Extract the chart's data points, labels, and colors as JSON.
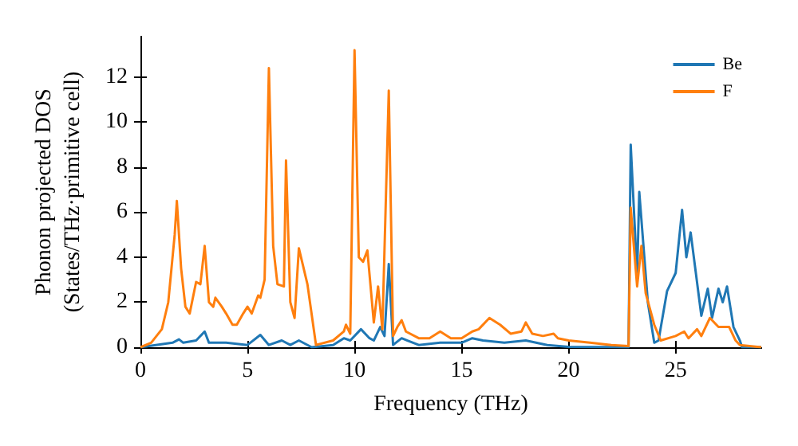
{
  "chart_data": {
    "type": "line",
    "xlabel": "Frequency (THz)",
    "ylabel": "Phonon projected DOS\n(States/THz·primitive cell)",
    "xlim": [
      0,
      29
    ],
    "ylim": [
      0,
      13.8
    ],
    "xticks": [
      0,
      5,
      10,
      15,
      20,
      25
    ],
    "yticks": [
      0,
      2,
      4,
      6,
      8,
      10,
      12
    ],
    "grid": false,
    "legend": "top right",
    "marker": "none",
    "line_style": "solid",
    "series": [
      {
        "name": "Be",
        "color": "#1f77b4",
        "x": [
          0,
          1.5,
          1.8,
          2.0,
          2.6,
          3.0,
          3.2,
          4.0,
          5.0,
          5.6,
          6.0,
          6.6,
          7.0,
          7.4,
          8.0,
          9.0,
          9.5,
          9.8,
          10.3,
          10.7,
          10.9,
          11.2,
          11.4,
          11.6,
          11.8,
          12.2,
          13,
          14,
          15,
          15.5,
          16,
          17,
          18,
          19,
          20,
          22.8,
          22.9,
          23.2,
          23.3,
          23.7,
          24.0,
          24.2,
          24.6,
          25.0,
          25.3,
          25.5,
          25.7,
          26.2,
          26.5,
          26.7,
          27.0,
          27.2,
          27.4,
          27.7,
          28.0,
          28.1,
          29
        ],
        "values": [
          0,
          0.2,
          0.35,
          0.2,
          0.3,
          0.7,
          0.2,
          0.2,
          0.1,
          0.55,
          0.1,
          0.3,
          0.1,
          0.3,
          0,
          0.1,
          0.4,
          0.3,
          0.8,
          0.4,
          0.3,
          0.9,
          0.5,
          3.7,
          0.1,
          0.4,
          0.1,
          0.2,
          0.2,
          0.4,
          0.3,
          0.2,
          0.3,
          0.1,
          0.02,
          0,
          9.0,
          3.2,
          6.9,
          2.0,
          0.2,
          0.3,
          2.5,
          3.3,
          6.1,
          4.0,
          5.1,
          1.4,
          2.6,
          1.3,
          2.6,
          2.0,
          2.7,
          0.9,
          0.3,
          0,
          0
        ]
      },
      {
        "name": "F",
        "color": "#ff7f0e",
        "x": [
          0,
          0.5,
          1.0,
          1.3,
          1.6,
          1.7,
          1.9,
          2.1,
          2.3,
          2.6,
          2.8,
          3.0,
          3.2,
          3.4,
          3.5,
          3.8,
          4.0,
          4.3,
          4.5,
          4.8,
          5.0,
          5.2,
          5.5,
          5.6,
          5.8,
          6.0,
          6.2,
          6.4,
          6.7,
          6.8,
          7.0,
          7.2,
          7.4,
          7.8,
          8.2,
          9.0,
          9.5,
          9.6,
          9.8,
          10.0,
          10.2,
          10.4,
          10.6,
          10.9,
          11.1,
          11.3,
          11.6,
          11.8,
          12.0,
          12.2,
          12.4,
          13.0,
          13.5,
          14.0,
          14.5,
          15.0,
          15.5,
          15.8,
          16.3,
          16.8,
          17.3,
          17.8,
          18.0,
          18.3,
          18.8,
          19.3,
          19.5,
          20,
          21,
          22,
          22.8,
          22.9,
          23.2,
          23.4,
          23.6,
          24.0,
          24.3,
          25,
          25.4,
          25.6,
          26.0,
          26.2,
          26.6,
          27.0,
          27.5,
          27.8,
          28.0,
          29
        ],
        "values": [
          0,
          0.2,
          0.8,
          2.0,
          5.0,
          6.5,
          3.5,
          1.8,
          1.5,
          2.9,
          2.8,
          4.5,
          2.0,
          1.8,
          2.2,
          1.8,
          1.5,
          1.0,
          1.0,
          1.5,
          1.8,
          1.5,
          2.3,
          2.2,
          3.0,
          12.4,
          4.5,
          2.8,
          2.7,
          8.3,
          2.0,
          1.3,
          4.4,
          2.8,
          0.1,
          0.3,
          0.7,
          1.0,
          0.6,
          13.2,
          4.0,
          3.8,
          4.3,
          1.1,
          2.7,
          0.8,
          11.4,
          0.5,
          0.9,
          1.2,
          0.7,
          0.4,
          0.4,
          0.7,
          0.4,
          0.4,
          0.7,
          0.8,
          1.3,
          1.0,
          0.6,
          0.7,
          1.1,
          0.6,
          0.5,
          0.6,
          0.4,
          0.3,
          0.2,
          0.1,
          0.05,
          6.2,
          2.7,
          4.5,
          2.4,
          1.0,
          0.3,
          0.5,
          0.7,
          0.4,
          0.8,
          0.5,
          1.3,
          0.9,
          0.9,
          0.3,
          0.1,
          0
        ]
      }
    ]
  }
}
